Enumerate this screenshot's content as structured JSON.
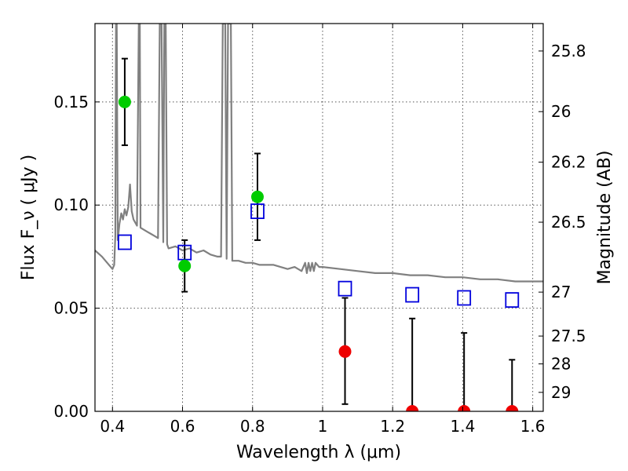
{
  "chart_data": {
    "type": "scatter",
    "xlabel": "Wavelength  λ (μm)",
    "ylabel": "Flux  F_ν  ( μJy )",
    "y2label": "Magnitude (AB)",
    "xlim": [
      0.35,
      1.63
    ],
    "ylim": [
      0.0,
      0.188
    ],
    "grid": true,
    "x_ticks": [
      0.4,
      0.6,
      0.8,
      1.0,
      1.2,
      1.4,
      1.6
    ],
    "x_tick_labels": [
      "0.4",
      "0.6",
      "0.8",
      "1",
      "1.2",
      "1.4",
      "1.6"
    ],
    "y_ticks": [
      0.0,
      0.05,
      0.1,
      0.15
    ],
    "y_tick_labels": [
      "0.00",
      "0.05",
      "0.10",
      "0.15"
    ],
    "y2_ticks": [
      {
        "label": "25.8",
        "flux": 0.1747
      },
      {
        "label": "26",
        "flux": 0.1453
      },
      {
        "label": "26.2",
        "flux": 0.1208
      },
      {
        "label": "26.5",
        "flux": 0.0917
      },
      {
        "label": "27",
        "flux": 0.0578
      },
      {
        "label": "27.5",
        "flux": 0.0365
      },
      {
        "label": "28",
        "flux": 0.023
      },
      {
        "label": "29",
        "flux": 0.0092
      }
    ],
    "colors": {
      "template": "#808080",
      "detection": "#00cc00",
      "upper_limit": "#ee0000",
      "model_flux": "#0000dd",
      "error_bar": "#000000",
      "grid": "#555555"
    },
    "series": [
      {
        "marker": "circle",
        "color": "#00cc00",
        "points": [
          {
            "x": 0.435,
            "y": 0.15,
            "y_low": 0.129,
            "y_high": 0.171
          },
          {
            "x": 0.606,
            "y": 0.0705,
            "y_low": 0.058,
            "y_high": 0.083
          },
          {
            "x": 0.814,
            "y": 0.104,
            "y_low": 0.083,
            "y_high": 0.125
          }
        ]
      },
      {
        "marker": "circle",
        "color": "#ee0000",
        "points": [
          {
            "x": 1.064,
            "y": 0.029,
            "y_low": 0.0035,
            "y_high": 0.055
          },
          {
            "x": 1.256,
            "y": 0.0,
            "y_low": 0.0,
            "y_high": 0.045
          },
          {
            "x": 1.404,
            "y": 0.0,
            "y_low": 0.0,
            "y_high": 0.038
          },
          {
            "x": 1.541,
            "y": 0.0,
            "y_low": 0.0,
            "y_high": 0.025
          }
        ]
      },
      {
        "marker": "open-square",
        "color": "#0000dd",
        "points": [
          {
            "x": 0.435,
            "y": 0.082
          },
          {
            "x": 0.606,
            "y": 0.077
          },
          {
            "x": 0.814,
            "y": 0.097
          },
          {
            "x": 1.064,
            "y": 0.0595
          },
          {
            "x": 1.256,
            "y": 0.0565
          },
          {
            "x": 1.404,
            "y": 0.055
          },
          {
            "x": 1.541,
            "y": 0.054
          }
        ]
      },
      {
        "marker": "line",
        "color": "#808080",
        "points": [
          [
            0.35,
            0.078
          ],
          [
            0.37,
            0.075
          ],
          [
            0.39,
            0.071
          ],
          [
            0.4,
            0.069
          ],
          [
            0.405,
            0.071
          ],
          [
            0.408,
            0.085
          ],
          [
            0.41,
            0.188
          ],
          [
            0.412,
            0.188
          ],
          [
            0.415,
            0.083
          ],
          [
            0.42,
            0.091
          ],
          [
            0.425,
            0.096
          ],
          [
            0.43,
            0.093
          ],
          [
            0.435,
            0.098
          ],
          [
            0.44,
            0.095
          ],
          [
            0.445,
            0.099
          ],
          [
            0.45,
            0.11
          ],
          [
            0.455,
            0.097
          ],
          [
            0.46,
            0.093
          ],
          [
            0.47,
            0.09
          ],
          [
            0.475,
            0.188
          ],
          [
            0.478,
            0.188
          ],
          [
            0.48,
            0.089
          ],
          [
            0.49,
            0.088
          ],
          [
            0.5,
            0.087
          ],
          [
            0.51,
            0.086
          ],
          [
            0.52,
            0.085
          ],
          [
            0.53,
            0.084
          ],
          [
            0.535,
            0.188
          ],
          [
            0.54,
            0.188
          ],
          [
            0.545,
            0.082
          ],
          [
            0.548,
            0.188
          ],
          [
            0.552,
            0.188
          ],
          [
            0.556,
            0.081
          ],
          [
            0.56,
            0.079
          ],
          [
            0.58,
            0.08
          ],
          [
            0.6,
            0.078
          ],
          [
            0.62,
            0.079
          ],
          [
            0.64,
            0.077
          ],
          [
            0.66,
            0.078
          ],
          [
            0.68,
            0.076
          ],
          [
            0.7,
            0.075
          ],
          [
            0.71,
            0.075
          ],
          [
            0.715,
            0.188
          ],
          [
            0.722,
            0.188
          ],
          [
            0.726,
            0.074
          ],
          [
            0.73,
            0.188
          ],
          [
            0.738,
            0.188
          ],
          [
            0.742,
            0.073
          ],
          [
            0.76,
            0.073
          ],
          [
            0.78,
            0.072
          ],
          [
            0.8,
            0.072
          ],
          [
            0.82,
            0.071
          ],
          [
            0.84,
            0.071
          ],
          [
            0.86,
            0.071
          ],
          [
            0.88,
            0.07
          ],
          [
            0.9,
            0.069
          ],
          [
            0.92,
            0.07
          ],
          [
            0.94,
            0.068
          ],
          [
            0.95,
            0.072
          ],
          [
            0.955,
            0.067
          ],
          [
            0.96,
            0.072
          ],
          [
            0.965,
            0.068
          ],
          [
            0.97,
            0.072
          ],
          [
            0.975,
            0.068
          ],
          [
            0.98,
            0.072
          ],
          [
            0.99,
            0.07
          ],
          [
            1.0,
            0.07
          ],
          [
            1.05,
            0.069
          ],
          [
            1.1,
            0.068
          ],
          [
            1.15,
            0.067
          ],
          [
            1.2,
            0.067
          ],
          [
            1.25,
            0.066
          ],
          [
            1.3,
            0.066
          ],
          [
            1.35,
            0.065
          ],
          [
            1.4,
            0.065
          ],
          [
            1.45,
            0.064
          ],
          [
            1.5,
            0.064
          ],
          [
            1.55,
            0.063
          ],
          [
            1.6,
            0.063
          ],
          [
            1.63,
            0.063
          ]
        ]
      }
    ]
  }
}
